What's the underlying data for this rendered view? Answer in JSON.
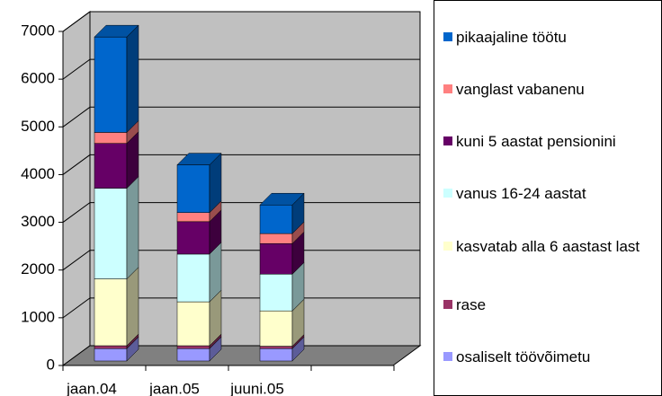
{
  "chart_data": {
    "type": "bar3d-stacked",
    "categories": [
      "jaan.04",
      "jaan.05",
      "juuni.05"
    ],
    "series": [
      {
        "name": "osaliselt töövõimetu",
        "color": "#9999ff",
        "values": [
          260,
          260,
          260
        ]
      },
      {
        "name": "rase",
        "color": "#993366",
        "values": [
          60,
          60,
          50
        ]
      },
      {
        "name": "kasvatab alla 6 aastast last",
        "color": "#ffffcc",
        "values": [
          1400,
          920,
          740
        ]
      },
      {
        "name": "vanus 16-24 aastat",
        "color": "#ccffff",
        "values": [
          1900,
          1000,
          770
        ]
      },
      {
        "name": "kuni 5 aastat pensionini",
        "color": "#660066",
        "values": [
          940,
          680,
          640
        ]
      },
      {
        "name": "vanglast vabanenu",
        "color": "#ff8080",
        "values": [
          230,
          190,
          210
        ]
      },
      {
        "name": "pikaajaline töötu",
        "color": "#0066cc",
        "values": [
          2000,
          1000,
          600
        ]
      }
    ],
    "ylim": [
      0,
      7000
    ],
    "yticks": [
      0,
      1000,
      2000,
      3000,
      4000,
      5000,
      6000,
      7000
    ],
    "grid": true,
    "legend": "right"
  }
}
